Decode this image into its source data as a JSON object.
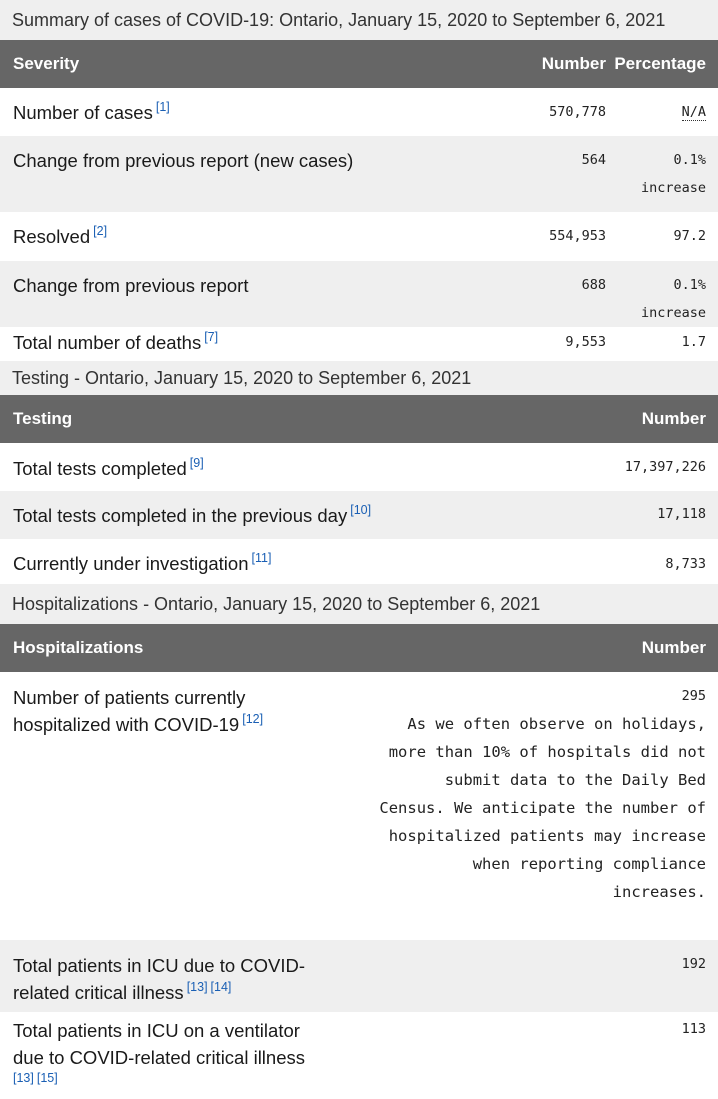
{
  "summary": {
    "caption": "Summary of cases of COVID-19: Ontario, January 15, 2020 to September 6, 2021",
    "headers": {
      "severity": "Severity",
      "number": "Number",
      "percentage": "Percentage"
    },
    "rows": [
      {
        "label": "Number of cases",
        "ref": "[1]",
        "number": "570,778",
        "pct": "N/A",
        "pct2": ""
      },
      {
        "label": "Change from previous report (new cases)",
        "ref": "",
        "number": "564",
        "pct": "0.1%",
        "pct2": "increase"
      },
      {
        "label": "Resolved",
        "ref": "[2]",
        "number": "554,953",
        "pct": "97.2",
        "pct2": ""
      },
      {
        "label": "Change from previous report",
        "ref": "",
        "number": "688",
        "pct": "0.1%",
        "pct2": "increase"
      },
      {
        "label": "Total number of deaths",
        "ref": "[7]",
        "number": "9,553",
        "pct": "1.7",
        "pct2": ""
      }
    ]
  },
  "testing": {
    "caption": "Testing - Ontario, January 15, 2020 to September 6, 2021",
    "headers": {
      "testing": "Testing",
      "number": "Number"
    },
    "rows": [
      {
        "label": "Total tests completed",
        "ref": "[9]",
        "number": "17,397,226"
      },
      {
        "label": "Total tests completed in the previous day",
        "ref": "[10]",
        "number": "17,118"
      },
      {
        "label": "Currently under investigation",
        "ref": "[11]",
        "number": "8,733"
      }
    ]
  },
  "hospitalizations": {
    "caption": "Hospitalizations - Ontario, January 15, 2020 to September 6, 2021",
    "headers": {
      "hospitalizations": "Hospitalizations",
      "number": "Number"
    },
    "rows": [
      {
        "label_line1": "Number of patients currently",
        "label_line2": "hospitalized with COVID-19",
        "ref": "[12]",
        "number": "295",
        "note": "As we often observe on holidays,\nmore than 10% of hospitals did not\nsubmit data to the Daily Bed\nCensus. We anticipate the number of\nhospitalized patients may increase\nwhen reporting compliance\nincreases."
      },
      {
        "label_line1": "Total patients in ICU due to COVID-",
        "label_line2": "related critical illness",
        "ref1": "[13]",
        "ref2": "[14]",
        "number": "192"
      },
      {
        "label_line1": "Total patients in ICU on a ventilator",
        "label_line2": "due to COVID-related critical illness",
        "ref1": "[13]",
        "ref2": "[15]",
        "number": "113"
      }
    ]
  }
}
